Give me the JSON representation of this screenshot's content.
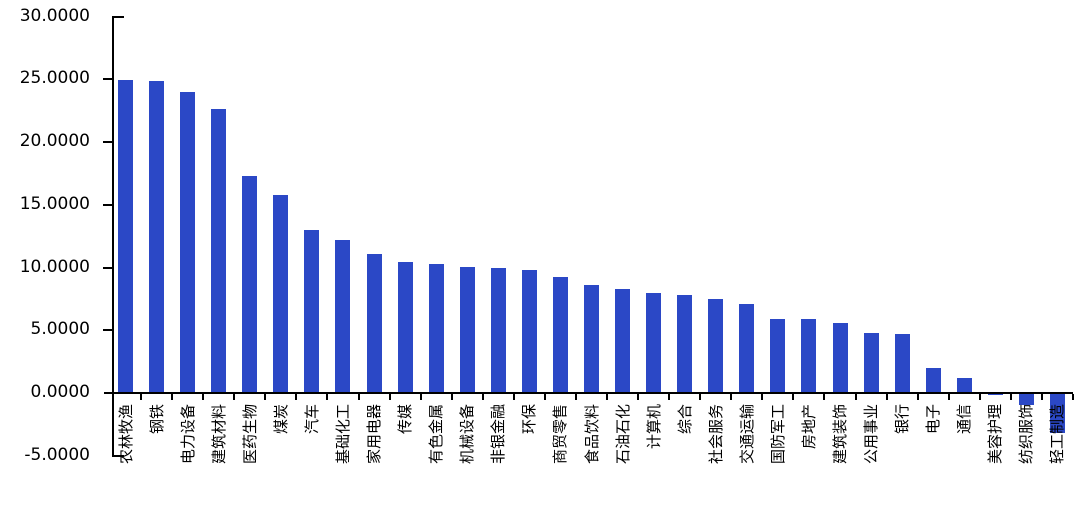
{
  "chart_data": {
    "type": "bar",
    "title": "",
    "xlabel": "",
    "ylabel": "",
    "categories": [
      "农林牧渔",
      "钢铁",
      "电力设备",
      "建筑材料",
      "医药生物",
      "煤炭",
      "汽车",
      "基础化工",
      "家用电器",
      "传媒",
      "有色金属",
      "机械设备",
      "非银金融",
      "环保",
      "商贸零售",
      "食品饮料",
      "石油石化",
      "计算机",
      "综合",
      "社会服务",
      "交通运输",
      "国防军工",
      "房地产",
      "建筑装饰",
      "公用事业",
      "银行",
      "电子",
      "通信",
      "美容护理",
      "纺织服饰",
      "轻工制造"
    ],
    "values": [
      24.9,
      24.8,
      23.9,
      22.6,
      17.2,
      15.7,
      12.9,
      12.1,
      11.0,
      10.4,
      10.2,
      10.0,
      9.9,
      9.7,
      9.2,
      8.5,
      8.2,
      7.9,
      7.7,
      7.4,
      7.0,
      5.8,
      5.8,
      5.5,
      4.7,
      4.6,
      1.9,
      1.1,
      -0.1,
      -0.9,
      -3.1
    ],
    "ytick_values": [
      30,
      25,
      20,
      15,
      10,
      5,
      0,
      -5
    ],
    "ytick_labels": [
      "30.0000",
      "25.0000",
      "20.0000",
      "15.0000",
      "10.0000",
      "5.0000",
      "0.0000",
      "-5.0000"
    ],
    "ylim": [
      -5,
      30
    ],
    "bar_color": "#2B48C6",
    "axis_color": "#000000",
    "grid": "off",
    "legend": "none"
  }
}
